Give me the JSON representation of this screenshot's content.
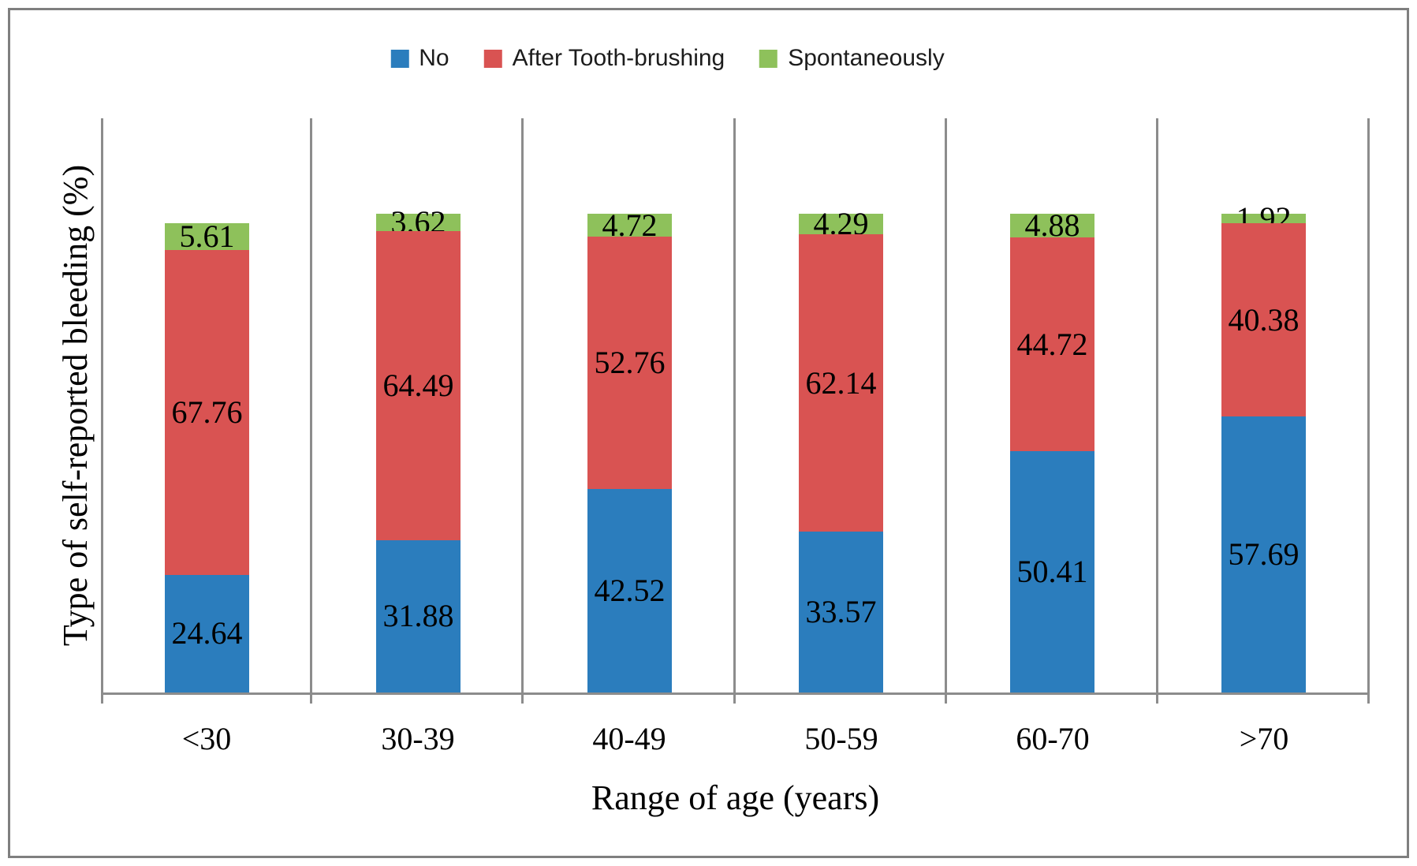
{
  "chart_data": {
    "type": "bar",
    "stacked": true,
    "categories": [
      "<30",
      "30-39",
      "40-49",
      "50-59",
      "60-70",
      ">70"
    ],
    "series": [
      {
        "name": "No",
        "color": "#2B7DBD",
        "values": [
          24.64,
          31.88,
          42.52,
          33.57,
          50.41,
          57.69
        ]
      },
      {
        "name": "After Tooth-brushing",
        "color": "#D95352",
        "values": [
          67.76,
          64.49,
          52.76,
          62.14,
          44.72,
          40.38
        ]
      },
      {
        "name": "Spontaneously",
        "color": "#8EC15B",
        "values": [
          5.61,
          3.62,
          4.72,
          4.29,
          4.88,
          1.92
        ]
      }
    ],
    "xlabel": "Range of age (years)",
    "ylabel": "Type of self-reported bleeding (%)",
    "ylim": [
      0,
      120
    ],
    "value_labels": "center",
    "value_label_decimals": 2,
    "legend_position": "top",
    "gridlines": "vertical-category-separators",
    "axis_color": "#8C8C8C",
    "frame_color": "#7F7F7F",
    "text_color": "#000000"
  }
}
